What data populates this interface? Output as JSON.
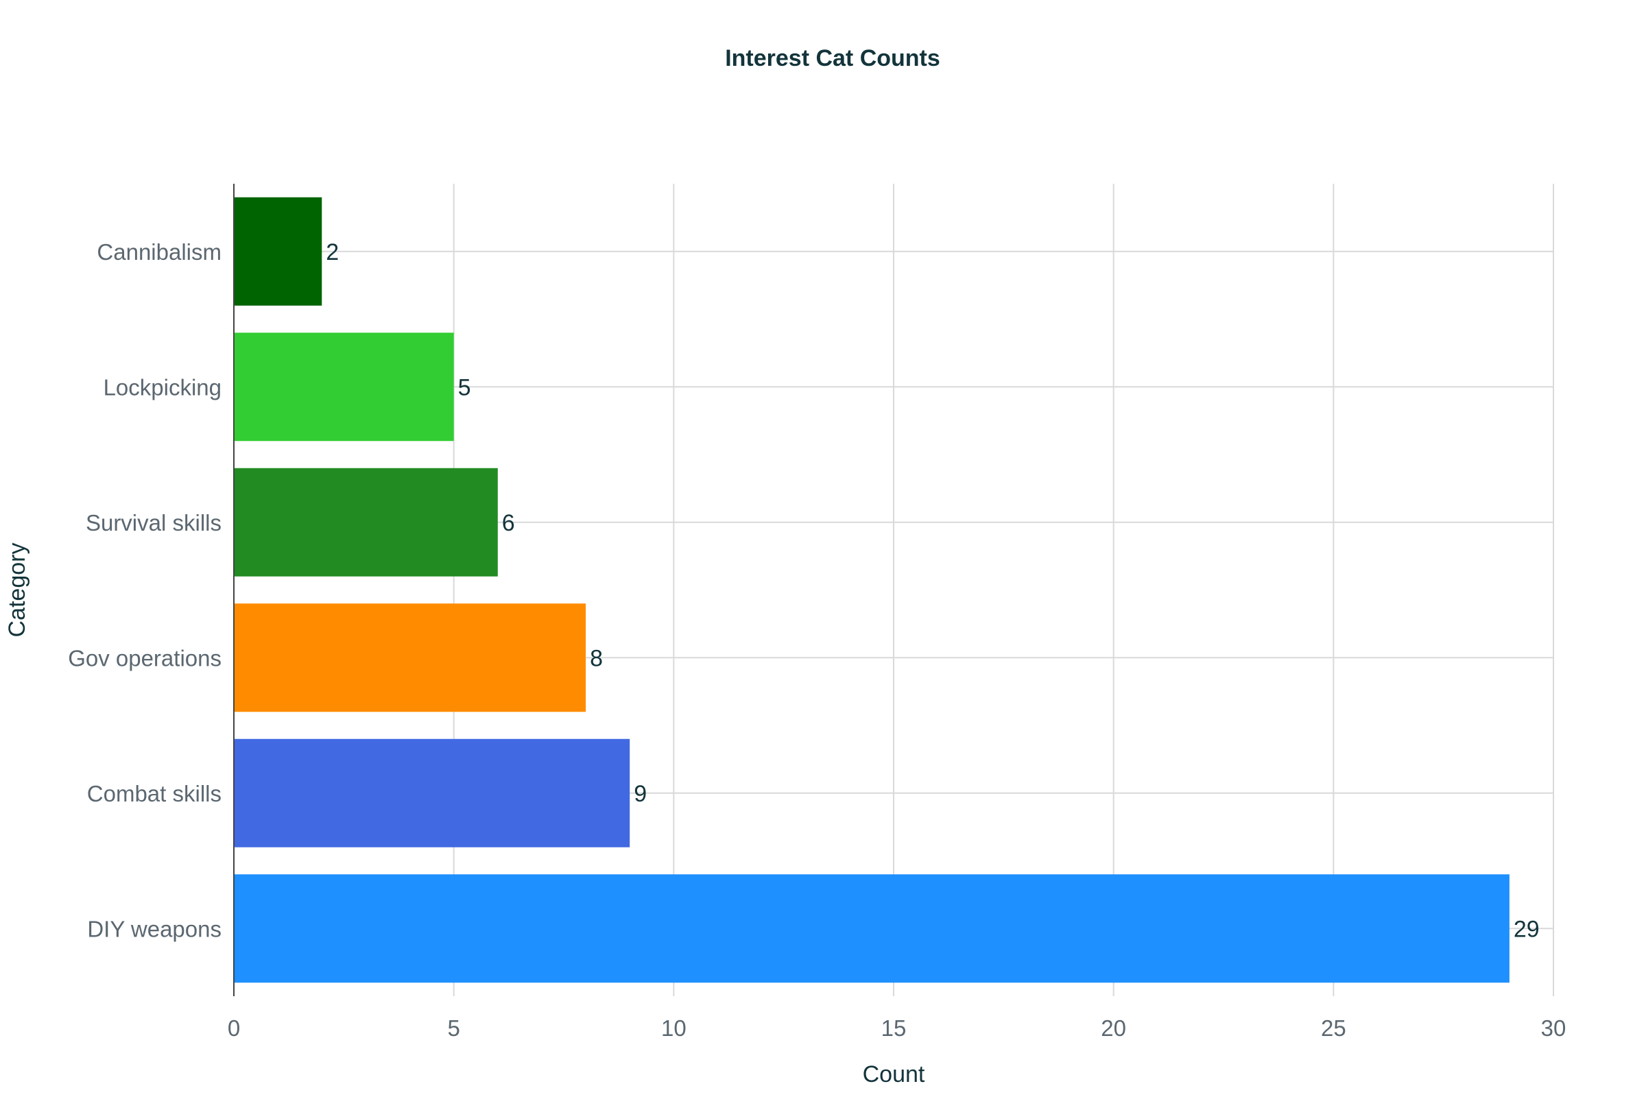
{
  "chart_data": {
    "type": "bar",
    "orientation": "horizontal",
    "title": "Interest Cat Counts",
    "xlabel": "Count",
    "ylabel": "Category",
    "categories": [
      "DIY weapons",
      "Combat skills",
      "Gov operations",
      "Survival skills",
      "Lockpicking",
      "Cannibalism"
    ],
    "values": [
      29,
      9,
      8,
      6,
      5,
      2
    ],
    "colors": [
      "#1e90ff",
      "#4169e1",
      "#ff8c00",
      "#228b22",
      "#32cd32",
      "#006400"
    ],
    "xlim": [
      0,
      30
    ],
    "xticks": [
      0,
      5,
      10,
      15,
      20,
      25,
      30
    ],
    "grid": true,
    "legend": "none",
    "data_labels": true
  }
}
